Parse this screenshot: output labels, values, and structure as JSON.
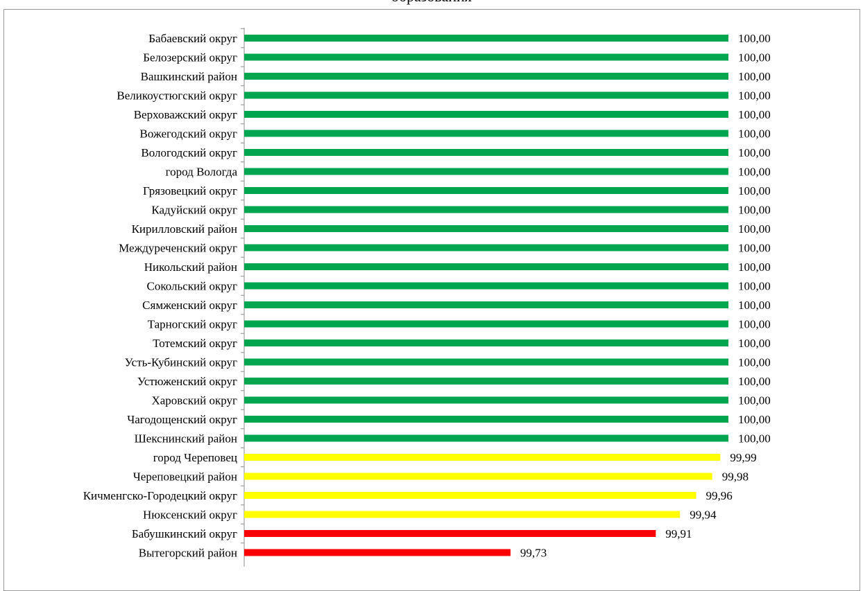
{
  "chart_data": {
    "type": "bar",
    "orientation": "horizontal",
    "title": "образования",
    "xlabel": "",
    "ylabel": "",
    "xlim": [
      99.4,
      100.0
    ],
    "grid": false,
    "legend": "none",
    "categories": [
      "Бабаевский округ",
      "Белозерский округ",
      "Вашкинский район",
      "Великоустюгский округ",
      "Верховажский округ",
      "Вожегодский округ",
      "Вологодский округ",
      "город Вологда",
      "Грязовецкий округ",
      "Кадуйский округ",
      "Кирилловский район",
      "Междуреченский округ",
      "Никольский район",
      "Сокольский округ",
      "Сямженский округ",
      "Тарногский округ",
      "Тотемский округ",
      "Усть-Кубинский округ",
      "Устюженский округ",
      "Харовский округ",
      "Чагодощенский округ",
      "Шекснинский район",
      "город Череповец",
      "Череповецкий район",
      "Кичменгско-Городецкий округ",
      "Нюксенский округ",
      "Бабушкинский округ",
      "Вытегорский район"
    ],
    "values": [
      100.0,
      100.0,
      100.0,
      100.0,
      100.0,
      100.0,
      100.0,
      100.0,
      100.0,
      100.0,
      100.0,
      100.0,
      100.0,
      100.0,
      100.0,
      100.0,
      100.0,
      100.0,
      100.0,
      100.0,
      100.0,
      100.0,
      99.99,
      99.98,
      99.96,
      99.94,
      99.91,
      99.73
    ],
    "value_labels": [
      "100,00",
      "100,00",
      "100,00",
      "100,00",
      "100,00",
      "100,00",
      "100,00",
      "100,00",
      "100,00",
      "100,00",
      "100,00",
      "100,00",
      "100,00",
      "100,00",
      "100,00",
      "100,00",
      "100,00",
      "100,00",
      "100,00",
      "100,00",
      "100,00",
      "100,00",
      "99,99",
      "99,98",
      "99,96",
      "99,94",
      "99,91",
      "99,73"
    ],
    "bar_colors": [
      "#00a550",
      "#00a550",
      "#00a550",
      "#00a550",
      "#00a550",
      "#00a550",
      "#00a550",
      "#00a550",
      "#00a550",
      "#00a550",
      "#00a550",
      "#00a550",
      "#00a550",
      "#00a550",
      "#00a550",
      "#00a550",
      "#00a550",
      "#00a550",
      "#00a550",
      "#00a550",
      "#00a550",
      "#00a550",
      "#ffff00",
      "#ffff00",
      "#ffff00",
      "#ffff00",
      "#ff0000",
      "#ff0000"
    ]
  }
}
